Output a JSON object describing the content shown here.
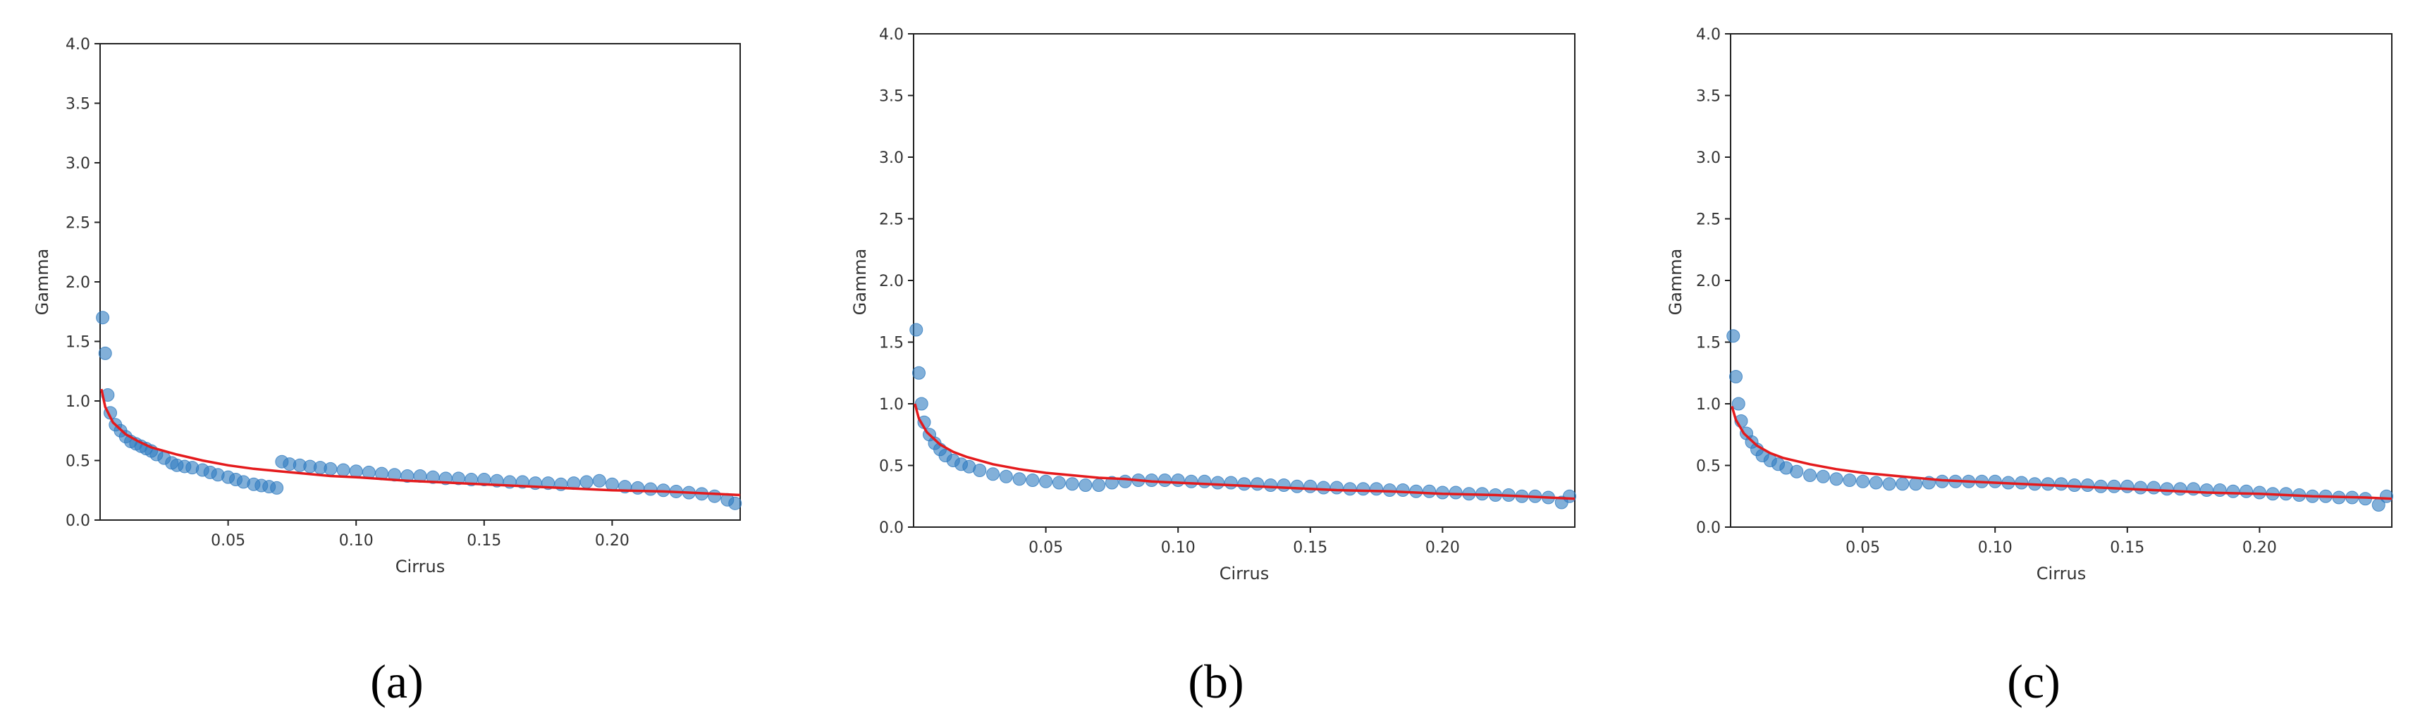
{
  "colors": {
    "scatter": "#2f7bbf",
    "fit": "#e41a1c",
    "axes": "#222222"
  },
  "chart_data": [
    {
      "type": "scatter",
      "caption": "(a)",
      "xlabel": "Cirrus",
      "ylabel": "Gamma",
      "xlim": [
        0.0,
        0.25
      ],
      "ylim": [
        0.0,
        4.0
      ],
      "xticks": [
        "0.05",
        "0.10",
        "0.15",
        "0.20"
      ],
      "yticks": [
        "0.0",
        "0.5",
        "1.0",
        "1.5",
        "2.0",
        "2.5",
        "3.0",
        "3.5",
        "4.0"
      ],
      "grid": false,
      "series": [
        {
          "kind": "points",
          "x": [
            0.001,
            0.002,
            0.003,
            0.004,
            0.006,
            0.008,
            0.01,
            0.012,
            0.014,
            0.016,
            0.018,
            0.02,
            0.022,
            0.025,
            0.028,
            0.03,
            0.033,
            0.036,
            0.04,
            0.043,
            0.046,
            0.05,
            0.053,
            0.056,
            0.06,
            0.063,
            0.066,
            0.069,
            0.071,
            0.074,
            0.078,
            0.082,
            0.086,
            0.09,
            0.095,
            0.1,
            0.105,
            0.11,
            0.115,
            0.12,
            0.125,
            0.13,
            0.135,
            0.14,
            0.145,
            0.15,
            0.155,
            0.16,
            0.165,
            0.17,
            0.175,
            0.18,
            0.185,
            0.19,
            0.195,
            0.2,
            0.205,
            0.21,
            0.215,
            0.22,
            0.225,
            0.23,
            0.235,
            0.24,
            0.245,
            0.248
          ],
          "y": [
            1.7,
            1.4,
            1.05,
            0.9,
            0.8,
            0.75,
            0.7,
            0.66,
            0.64,
            0.62,
            0.6,
            0.58,
            0.55,
            0.52,
            0.48,
            0.46,
            0.45,
            0.44,
            0.42,
            0.4,
            0.38,
            0.36,
            0.34,
            0.32,
            0.3,
            0.29,
            0.28,
            0.27,
            0.49,
            0.47,
            0.46,
            0.45,
            0.44,
            0.43,
            0.42,
            0.41,
            0.4,
            0.39,
            0.38,
            0.37,
            0.37,
            0.36,
            0.35,
            0.35,
            0.34,
            0.34,
            0.33,
            0.32,
            0.32,
            0.31,
            0.31,
            0.3,
            0.31,
            0.32,
            0.33,
            0.3,
            0.28,
            0.27,
            0.26,
            0.25,
            0.24,
            0.23,
            0.22,
            0.2,
            0.17,
            0.14
          ]
        },
        {
          "kind": "fit",
          "x": [
            0.0005,
            0.002,
            0.005,
            0.01,
            0.015,
            0.02,
            0.03,
            0.04,
            0.05,
            0.06,
            0.07,
            0.08,
            0.09,
            0.1,
            0.12,
            0.14,
            0.16,
            0.18,
            0.2,
            0.22,
            0.24,
            0.25
          ],
          "y": [
            1.1,
            0.95,
            0.82,
            0.72,
            0.66,
            0.61,
            0.55,
            0.5,
            0.46,
            0.43,
            0.41,
            0.39,
            0.37,
            0.36,
            0.33,
            0.31,
            0.29,
            0.27,
            0.25,
            0.24,
            0.22,
            0.21
          ]
        }
      ]
    },
    {
      "type": "scatter",
      "caption": "(b)",
      "xlabel": "Cirrus",
      "ylabel": "Gamma",
      "xlim": [
        0.0,
        0.25
      ],
      "ylim": [
        0.0,
        4.0
      ],
      "xticks": [
        "0.05",
        "0.10",
        "0.15",
        "0.20"
      ],
      "yticks": [
        "0.0",
        "0.5",
        "1.0",
        "1.5",
        "2.0",
        "2.5",
        "3.0",
        "3.5",
        "4.0"
      ],
      "grid": false,
      "series": [
        {
          "kind": "points",
          "x": [
            0.001,
            0.002,
            0.003,
            0.004,
            0.006,
            0.008,
            0.01,
            0.012,
            0.015,
            0.018,
            0.021,
            0.025,
            0.03,
            0.035,
            0.04,
            0.045,
            0.05,
            0.055,
            0.06,
            0.065,
            0.07,
            0.075,
            0.08,
            0.085,
            0.09,
            0.095,
            0.1,
            0.105,
            0.11,
            0.115,
            0.12,
            0.125,
            0.13,
            0.135,
            0.14,
            0.145,
            0.15,
            0.155,
            0.16,
            0.165,
            0.17,
            0.175,
            0.18,
            0.185,
            0.19,
            0.195,
            0.2,
            0.205,
            0.21,
            0.215,
            0.22,
            0.225,
            0.23,
            0.235,
            0.24,
            0.245,
            0.248
          ],
          "y": [
            1.6,
            1.25,
            1.0,
            0.85,
            0.75,
            0.68,
            0.63,
            0.58,
            0.54,
            0.51,
            0.49,
            0.46,
            0.43,
            0.41,
            0.39,
            0.38,
            0.37,
            0.36,
            0.35,
            0.34,
            0.34,
            0.36,
            0.37,
            0.38,
            0.38,
            0.38,
            0.38,
            0.37,
            0.37,
            0.36,
            0.36,
            0.35,
            0.35,
            0.34,
            0.34,
            0.33,
            0.33,
            0.32,
            0.32,
            0.31,
            0.31,
            0.31,
            0.3,
            0.3,
            0.29,
            0.29,
            0.28,
            0.28,
            0.27,
            0.27,
            0.26,
            0.26,
            0.25,
            0.25,
            0.24,
            0.2,
            0.25
          ]
        },
        {
          "kind": "fit",
          "x": [
            0.0005,
            0.002,
            0.005,
            0.01,
            0.015,
            0.02,
            0.03,
            0.04,
            0.05,
            0.06,
            0.07,
            0.08,
            0.09,
            0.1,
            0.12,
            0.14,
            0.16,
            0.18,
            0.2,
            0.22,
            0.24,
            0.25
          ],
          "y": [
            1.0,
            0.88,
            0.77,
            0.67,
            0.61,
            0.57,
            0.51,
            0.47,
            0.44,
            0.42,
            0.4,
            0.39,
            0.37,
            0.36,
            0.34,
            0.32,
            0.3,
            0.29,
            0.27,
            0.26,
            0.24,
            0.23
          ]
        }
      ]
    },
    {
      "type": "scatter",
      "caption": "(c)",
      "xlabel": "Cirrus",
      "ylabel": "Gamma",
      "xlim": [
        0.0,
        0.25
      ],
      "ylim": [
        0.0,
        4.0
      ],
      "xticks": [
        "0.05",
        "0.10",
        "0.15",
        "0.20"
      ],
      "yticks": [
        "0.0",
        "0.5",
        "1.0",
        "1.5",
        "2.0",
        "2.5",
        "3.0",
        "3.5",
        "4.0"
      ],
      "grid": false,
      "series": [
        {
          "kind": "points",
          "x": [
            0.001,
            0.002,
            0.003,
            0.004,
            0.006,
            0.008,
            0.01,
            0.012,
            0.015,
            0.018,
            0.021,
            0.025,
            0.03,
            0.035,
            0.04,
            0.045,
            0.05,
            0.055,
            0.06,
            0.065,
            0.07,
            0.075,
            0.08,
            0.085,
            0.09,
            0.095,
            0.1,
            0.105,
            0.11,
            0.115,
            0.12,
            0.125,
            0.13,
            0.135,
            0.14,
            0.145,
            0.15,
            0.155,
            0.16,
            0.165,
            0.17,
            0.175,
            0.18,
            0.185,
            0.19,
            0.195,
            0.2,
            0.205,
            0.21,
            0.215,
            0.22,
            0.225,
            0.23,
            0.235,
            0.24,
            0.245,
            0.248
          ],
          "y": [
            1.55,
            1.22,
            1.0,
            0.86,
            0.76,
            0.69,
            0.63,
            0.58,
            0.54,
            0.51,
            0.48,
            0.45,
            0.42,
            0.41,
            0.39,
            0.38,
            0.37,
            0.36,
            0.35,
            0.35,
            0.35,
            0.36,
            0.37,
            0.37,
            0.37,
            0.37,
            0.37,
            0.36,
            0.36,
            0.35,
            0.35,
            0.35,
            0.34,
            0.34,
            0.33,
            0.33,
            0.33,
            0.32,
            0.32,
            0.31,
            0.31,
            0.31,
            0.3,
            0.3,
            0.29,
            0.29,
            0.28,
            0.27,
            0.27,
            0.26,
            0.25,
            0.25,
            0.24,
            0.24,
            0.23,
            0.18,
            0.25
          ]
        },
        {
          "kind": "fit",
          "x": [
            0.0005,
            0.002,
            0.005,
            0.01,
            0.015,
            0.02,
            0.03,
            0.04,
            0.05,
            0.06,
            0.07,
            0.08,
            0.09,
            0.1,
            0.12,
            0.14,
            0.16,
            0.18,
            0.2,
            0.22,
            0.24,
            0.25
          ],
          "y": [
            0.98,
            0.87,
            0.76,
            0.66,
            0.6,
            0.56,
            0.51,
            0.47,
            0.44,
            0.42,
            0.4,
            0.38,
            0.37,
            0.36,
            0.34,
            0.32,
            0.3,
            0.28,
            0.27,
            0.25,
            0.24,
            0.23
          ]
        }
      ]
    }
  ]
}
